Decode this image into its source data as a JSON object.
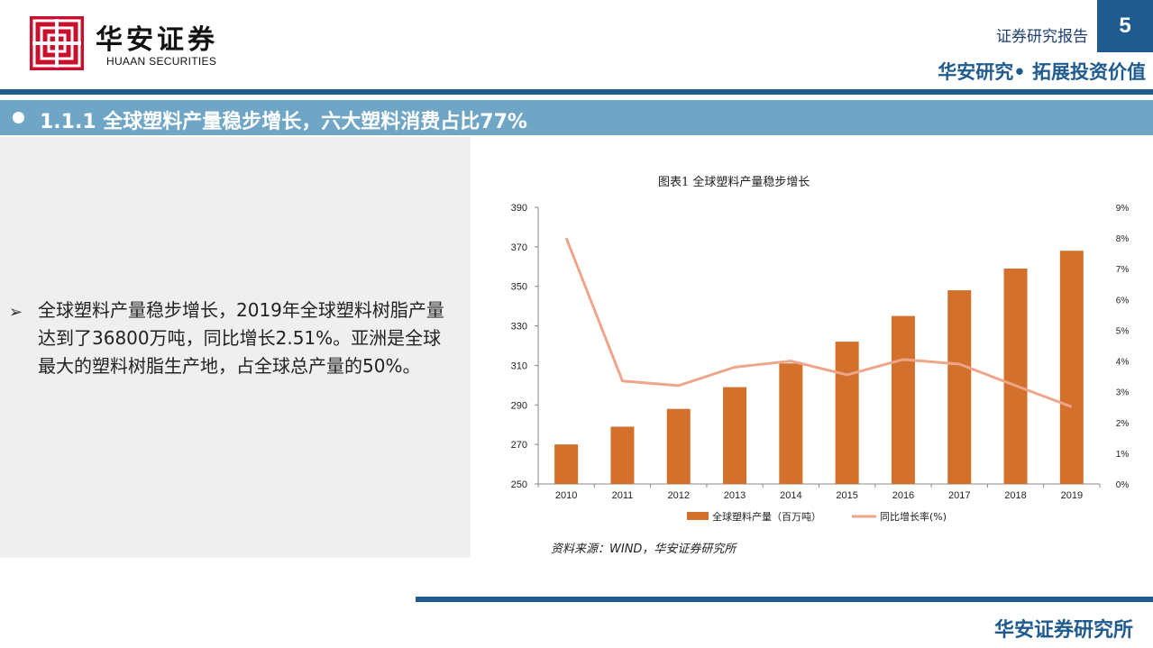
{
  "header": {
    "brand_cn": "华安证券",
    "brand_en": "HUAAN SECURITIES",
    "report_type": "证券研究报告",
    "page_number": "5",
    "tagline": "华安研究• 拓展投资价值"
  },
  "section": {
    "title": "1.1.1 全球塑料产量稳步增长，六大塑料消费占比77%"
  },
  "body": {
    "bullet": "➢",
    "text": "全球塑料产量稳步增长，2019年全球塑料树脂产量达到了36800万吨，同比增长2.51%。亚洲是全球最大的塑料树脂生产地，占全球总产量的50%。"
  },
  "chart_data": {
    "type": "bar",
    "title": "图表1 全球塑料产量稳步增长",
    "categories": [
      "2010",
      "2011",
      "2012",
      "2013",
      "2014",
      "2015",
      "2016",
      "2017",
      "2018",
      "2019"
    ],
    "series": [
      {
        "name": "全球塑料产量（百万吨）",
        "type": "bar",
        "axis": "left",
        "values": [
          270,
          279,
          288,
          299,
          311,
          322,
          335,
          348,
          359,
          368
        ],
        "color": "#d2702c"
      },
      {
        "name": "同比增长率(%)",
        "type": "line",
        "axis": "right",
        "values": [
          8.0,
          3.35,
          3.2,
          3.8,
          4.0,
          3.55,
          4.05,
          3.9,
          3.2,
          2.51
        ],
        "color": "#eea58a"
      }
    ],
    "ylim_left": [
      250,
      390
    ],
    "yticks_left": [
      "250",
      "270",
      "290",
      "310",
      "330",
      "350",
      "370",
      "390"
    ],
    "ylim_right": [
      0,
      9
    ],
    "yticks_right": [
      "0%",
      "1%",
      "2%",
      "3%",
      "4%",
      "5%",
      "6%",
      "7%",
      "8%",
      "9%"
    ],
    "grid": false,
    "legend": "bottom"
  },
  "source": "资料来源：WIND，华安证券研究所",
  "footer": {
    "text": "华安证券研究所"
  }
}
